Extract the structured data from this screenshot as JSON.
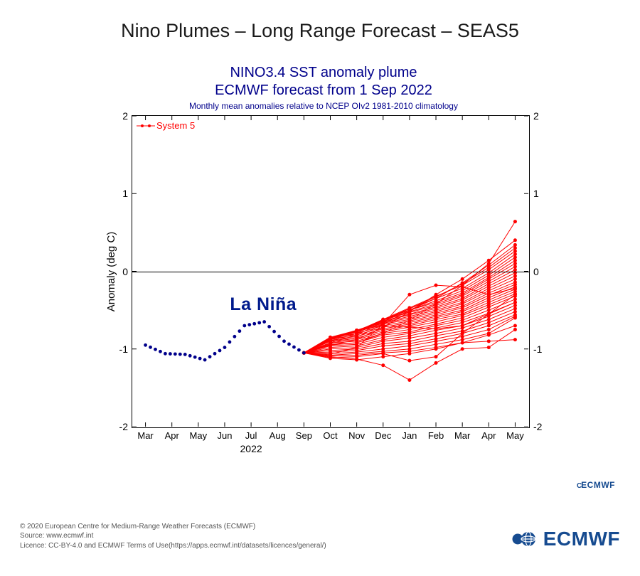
{
  "page_title": "Nino Plumes – Long Range Forecast – SEAS5",
  "chart": {
    "type": "line-plume",
    "title_line1": "NINO3.4 SST anomaly plume",
    "title_line2": "ECMWF forecast from 1 Sep 2022",
    "subtitle": "Monthly mean anomalies relative to NCEP OIv2 1981-2010 climatology",
    "title_fontsize": 20,
    "subtitle_fontsize": 12,
    "title_color": "#00008b",
    "ylabel": "Anomaly (deg C)",
    "ylabel_fontsize": 15,
    "ylim": [
      -2,
      2
    ],
    "yticks": [
      -2,
      -1,
      0,
      1,
      2
    ],
    "xlabels": [
      "Mar",
      "Apr",
      "May",
      "Jun",
      "Jul",
      "Aug",
      "Sep",
      "Oct",
      "Nov",
      "Dec",
      "Jan",
      "Feb",
      "Mar",
      "Apr",
      "May"
    ],
    "xyear_label": "2022",
    "xyear_at_index": 4,
    "background_color": "#ffffff",
    "axis_color": "#000000",
    "grid_zero_color": "#000000",
    "legend": {
      "label": "System 5",
      "color": "#ff0000"
    },
    "annotation": {
      "text": "La Niña",
      "color": "#001a8c",
      "x_index": 3.2,
      "y": -0.55,
      "fontsize": 25
    },
    "observed": {
      "color": "#00008b",
      "marker": "dot",
      "marker_size": 4,
      "line_style": "dotted",
      "points_y": [
        -0.95,
        -1.06,
        -1.07,
        -1.14,
        -0.98,
        -0.7,
        -0.65,
        -0.9,
        -1.05
      ]
    },
    "plume": {
      "color": "#ff0000",
      "line_width": 1,
      "marker": "dot",
      "marker_size": 2.5,
      "x_start_index": 6,
      "series_end_y": [
        [
          -1.05,
          -0.95,
          -0.92,
          -0.8,
          -0.63,
          -0.42,
          -0.18,
          0.1,
          0.64
        ],
        [
          -1.05,
          -0.95,
          -0.88,
          -0.72,
          -0.52,
          -0.3,
          -0.1,
          0.14,
          0.4
        ],
        [
          -1.05,
          -0.93,
          -0.85,
          -0.68,
          -0.5,
          -0.35,
          -0.15,
          0.08,
          0.34
        ],
        [
          -1.05,
          -0.92,
          -0.82,
          -0.65,
          -0.48,
          -0.33,
          -0.16,
          0.05,
          0.3
        ],
        [
          -1.05,
          -0.9,
          -0.8,
          -0.62,
          -0.47,
          -0.32,
          -0.18,
          0.02,
          0.26
        ],
        [
          -1.05,
          -0.9,
          -0.8,
          -0.63,
          -0.48,
          -0.35,
          -0.22,
          -0.02,
          0.22
        ],
        [
          -1.05,
          -0.88,
          -0.78,
          -0.62,
          -0.5,
          -0.38,
          -0.25,
          -0.05,
          0.18
        ],
        [
          -1.05,
          -0.88,
          -0.78,
          -0.62,
          -0.5,
          -0.4,
          -0.28,
          -0.08,
          0.14
        ],
        [
          -1.05,
          -0.87,
          -0.77,
          -0.62,
          -0.52,
          -0.42,
          -0.3,
          -0.1,
          0.1
        ],
        [
          -1.05,
          -0.87,
          -0.77,
          -0.63,
          -0.53,
          -0.44,
          -0.32,
          -0.13,
          0.06
        ],
        [
          -1.05,
          -0.86,
          -0.76,
          -0.64,
          -0.55,
          -0.46,
          -0.35,
          -0.16,
          0.02
        ],
        [
          -1.05,
          -0.86,
          -0.76,
          -0.65,
          -0.56,
          -0.48,
          -0.37,
          -0.19,
          -0.02
        ],
        [
          -1.05,
          -0.85,
          -0.76,
          -0.66,
          -0.58,
          -0.5,
          -0.4,
          -0.22,
          -0.06
        ],
        [
          -1.05,
          -0.85,
          -0.77,
          -0.67,
          -0.6,
          -0.52,
          -0.42,
          -0.25,
          -0.1
        ],
        [
          -1.05,
          -0.85,
          -0.78,
          -0.68,
          -0.62,
          -0.54,
          -0.45,
          -0.28,
          -0.14
        ],
        [
          -1.05,
          -0.86,
          -0.8,
          -0.7,
          -0.64,
          -0.56,
          -0.47,
          -0.31,
          -0.17
        ],
        [
          -1.05,
          -0.87,
          -0.82,
          -0.72,
          -0.66,
          -0.58,
          -0.5,
          -0.34,
          -0.2
        ],
        [
          -1.05,
          -0.88,
          -0.84,
          -0.74,
          -0.68,
          -0.6,
          -0.52,
          -0.37,
          -0.23
        ],
        [
          -1.05,
          -0.89,
          -0.86,
          -0.76,
          -0.7,
          -0.62,
          -0.55,
          -0.4,
          -0.26
        ],
        [
          -1.05,
          -0.9,
          -0.88,
          -0.78,
          -0.72,
          -0.65,
          -0.57,
          -0.43,
          -0.29
        ],
        [
          -1.05,
          -0.92,
          -0.9,
          -0.8,
          -0.75,
          -0.68,
          -0.6,
          -0.46,
          -0.32
        ],
        [
          -1.05,
          -0.94,
          -0.92,
          -0.82,
          -0.78,
          -0.7,
          -0.63,
          -0.5,
          -0.36
        ],
        [
          -1.05,
          -0.96,
          -0.94,
          -0.85,
          -0.8,
          -0.73,
          -0.66,
          -0.54,
          -0.4
        ],
        [
          -1.05,
          -0.98,
          -0.96,
          -0.88,
          -0.83,
          -0.76,
          -0.7,
          -0.58,
          -0.44
        ],
        [
          -1.05,
          -1.0,
          -0.98,
          -0.9,
          -0.86,
          -0.8,
          -0.73,
          -0.62,
          -0.48
        ],
        [
          -1.05,
          -1.02,
          -1.0,
          -0.93,
          -0.9,
          -0.83,
          -0.77,
          -0.66,
          -0.52
        ],
        [
          -1.05,
          -1.04,
          -1.02,
          -0.96,
          -0.93,
          -0.87,
          -0.8,
          -0.7,
          -0.56
        ],
        [
          -1.05,
          -1.06,
          -1.04,
          -1.0,
          -0.96,
          -0.9,
          -0.84,
          -0.75,
          -0.58
        ],
        [
          -1.05,
          -1.07,
          -0.98,
          -0.68,
          -0.3,
          -0.18,
          -0.2,
          -0.3,
          -0.22
        ],
        [
          -1.05,
          -1.08,
          -1.06,
          -1.03,
          -1.0,
          -0.94,
          -0.88,
          -0.8,
          -0.6
        ],
        [
          -1.05,
          -1.09,
          -1.08,
          -1.05,
          -1.03,
          -0.98,
          -0.92,
          -0.9,
          -0.88
        ],
        [
          -1.05,
          -1.1,
          -1.13,
          -1.21,
          -1.4,
          -1.18,
          -1.0,
          -0.98,
          -0.75
        ],
        [
          -1.05,
          -1.11,
          -1.1,
          -1.06,
          -1.15,
          -1.1,
          -0.8,
          -0.55,
          -0.4
        ],
        [
          -1.05,
          -1.12,
          -1.14,
          -1.1,
          -1.06,
          -1.0,
          -0.92,
          -0.82,
          -0.7
        ],
        [
          -1.05,
          -0.86,
          -0.76,
          -0.7,
          -0.72,
          -0.74,
          -0.7,
          -0.55,
          -0.3
        ]
      ]
    }
  },
  "brand_small": "ECMWF",
  "footer": {
    "line1": "© 2020 European Centre for Medium-Range Weather Forecasts (ECMWF)",
    "line2": "Source: www.ecmwf.int",
    "line3": "Licence: CC-BY-4.0 and ECMWF Terms of Use(https://apps.ecmwf.int/datasets/licences/general/)"
  },
  "brand_large": "ECMWF",
  "brand_color": "#164b90"
}
